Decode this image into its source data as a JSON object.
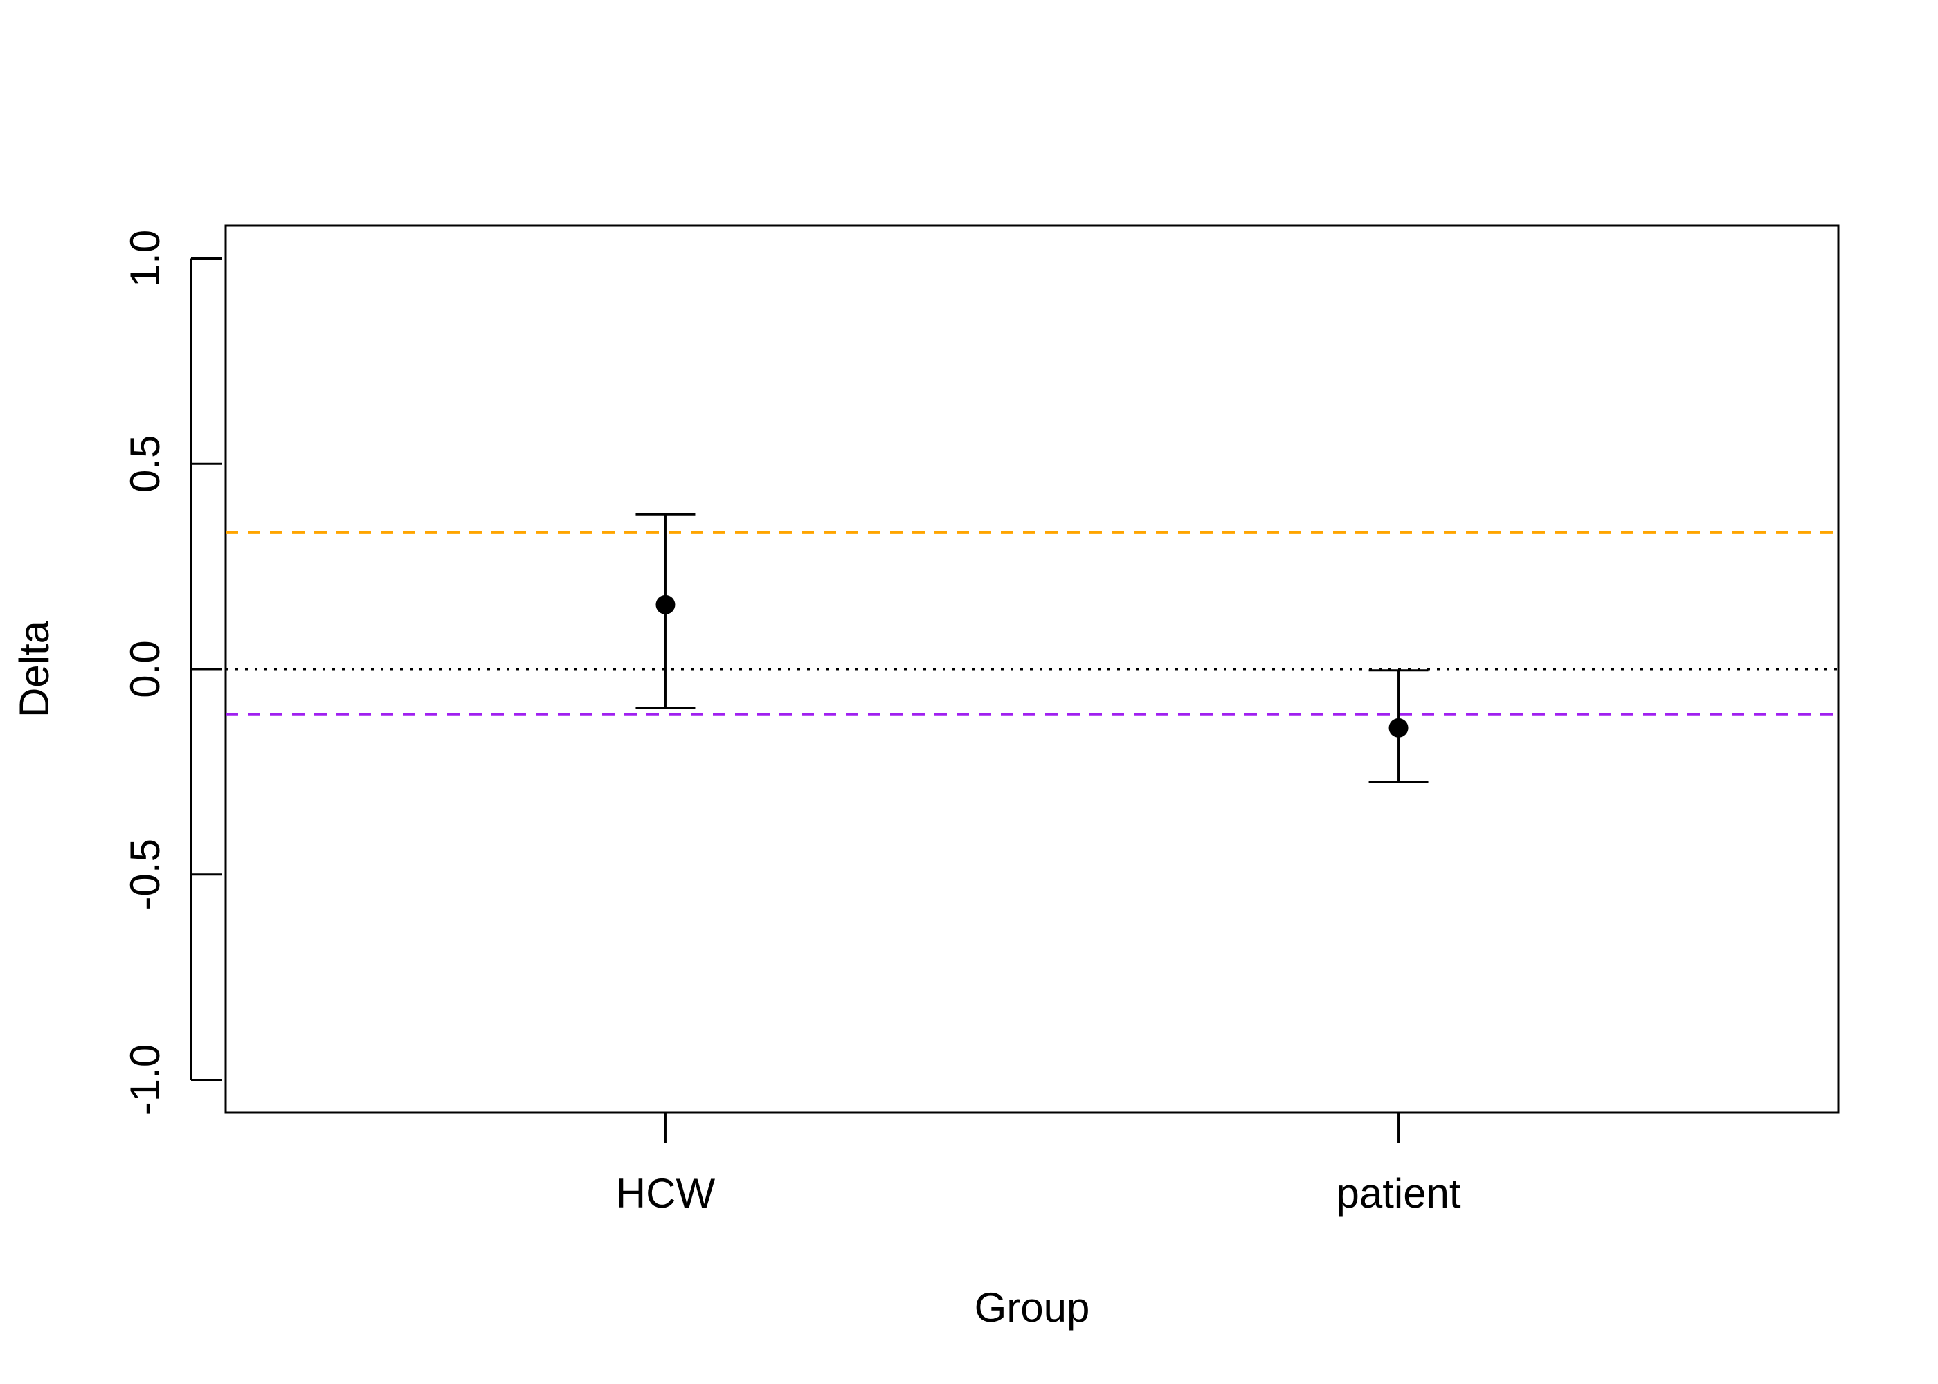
{
  "chart_data": {
    "type": "scatter",
    "title": "",
    "xlabel": "Group",
    "ylabel": "Delta",
    "ylim": [
      -1.08,
      1.08
    ],
    "yticks": [
      "-1.0",
      "-0.5",
      "0.0",
      "0.5",
      "1.0"
    ],
    "categories": [
      "HCW",
      "patient"
    ],
    "points": [
      {
        "category": "HCW",
        "value": 0.157,
        "lower": -0.095,
        "upper": 0.377
      },
      {
        "category": "patient",
        "value": -0.143,
        "lower": -0.274,
        "upper": -0.003
      }
    ],
    "reference_lines": [
      {
        "value": 0.333,
        "style": "dashed",
        "color": "#FFA500"
      },
      {
        "value": 0.0,
        "style": "dotted",
        "color": "#000000"
      },
      {
        "value": -0.11,
        "style": "dashed",
        "color": "#A020F0"
      }
    ],
    "grid": false,
    "legend": "none"
  }
}
